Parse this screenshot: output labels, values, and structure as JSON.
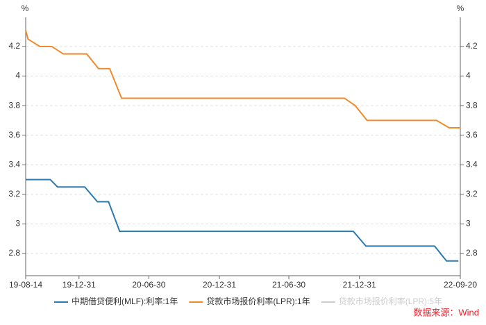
{
  "chart_data": {
    "type": "line",
    "y_unit": "%",
    "y2_unit": "%",
    "source": "数据来源：Wind",
    "source_color": "#e8202a",
    "xlim": [
      "19-08-14",
      "22-09-20"
    ],
    "xticks": [
      "19-08-14",
      "19-12-31",
      "20-06-30",
      "20-12-31",
      "21-06-30",
      "21-12-31",
      "22-09-20"
    ],
    "ylim": [
      2.65,
      4.35
    ],
    "yticks": [
      2.8,
      3,
      3.2,
      3.4,
      3.6,
      3.8,
      4,
      4.2
    ],
    "y2lim": [
      2.65,
      4.35
    ],
    "y2ticks": [
      2.8,
      3,
      3.2,
      3.4,
      3.6,
      3.8,
      4,
      4.2
    ],
    "grid": true,
    "series": [
      {
        "name": "中期借贷便利(MLF):利率:1年",
        "color": "#2a7ab0",
        "visible": true,
        "x": [
          "19-08-14",
          "19-10-17",
          "19-11-05",
          "20-01-15",
          "20-02-17",
          "20-03-17",
          "20-04-15",
          "21-12-15",
          "22-01-17",
          "22-07-15",
          "22-08-15",
          "22-09-15"
        ],
        "values": [
          3.3,
          3.3,
          3.25,
          3.25,
          3.15,
          3.15,
          2.95,
          2.95,
          2.85,
          2.85,
          2.75,
          2.75
        ]
      },
      {
        "name": "贷款市场报价利率(LPR):1年",
        "color": "#f08a2c",
        "visible": true,
        "x": [
          "19-08-14",
          "19-08-20",
          "19-09-20",
          "19-10-21",
          "19-11-20",
          "20-01-20",
          "20-02-20",
          "20-03-20",
          "20-04-20",
          "21-11-22",
          "21-12-20",
          "22-01-20",
          "22-07-20",
          "22-08-22",
          "22-09-20"
        ],
        "values": [
          4.31,
          4.25,
          4.2,
          4.2,
          4.15,
          4.15,
          4.05,
          4.05,
          3.85,
          3.85,
          3.8,
          3.7,
          3.7,
          3.65,
          3.65
        ]
      },
      {
        "name": "贷款市场报价利率(LPR):5年",
        "color": "#cccccc",
        "visible": false,
        "x": [],
        "values": []
      }
    ]
  }
}
